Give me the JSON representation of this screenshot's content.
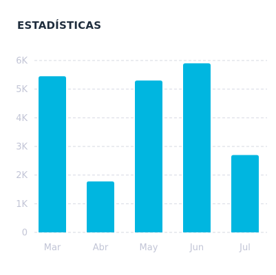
{
  "card": {
    "title": "ESTADÍSTICAS"
  },
  "colors": {
    "bar": "#00b6e0",
    "grid": "#d6dae2",
    "tick_text": "#c2c5d6",
    "title": "#1f2d3d"
  },
  "chart_data": {
    "type": "bar",
    "categories": [
      "Mar",
      "Abr",
      "May",
      "Jun",
      "Jul"
    ],
    "values": [
      5450,
      1780,
      5300,
      5900,
      2700
    ],
    "ylim": [
      0,
      6000
    ],
    "yticks": [
      {
        "value": 0,
        "label": "0"
      },
      {
        "value": 1000,
        "label": "1K"
      },
      {
        "value": 2000,
        "label": "2K"
      },
      {
        "value": 3000,
        "label": "3K"
      },
      {
        "value": 4000,
        "label": "4K"
      },
      {
        "value": 5000,
        "label": "5K"
      },
      {
        "value": 6000,
        "label": "6K"
      }
    ],
    "grid": true,
    "grid_style": "dashed",
    "legend": "none"
  }
}
